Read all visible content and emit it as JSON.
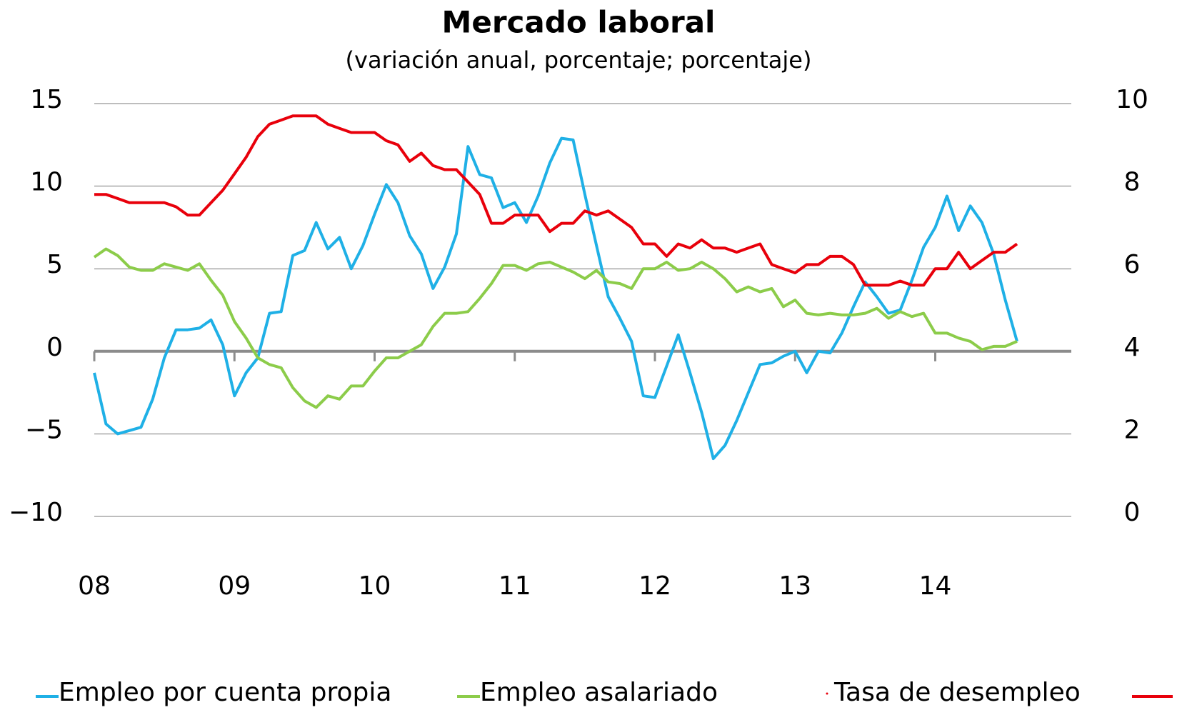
{
  "chart_data": {
    "type": "line",
    "title": "Mercado laboral",
    "subtitle": "(variación anual, porcentaje; porcentaje)",
    "x": [
      0,
      1,
      2,
      3,
      4,
      5,
      6,
      7,
      8,
      9,
      10,
      11,
      12,
      13,
      14,
      15,
      16,
      17,
      18,
      19,
      20,
      21,
      22,
      23,
      24,
      25,
      26,
      27,
      28,
      29,
      30,
      31,
      32,
      33,
      34,
      35,
      36,
      37,
      38,
      39,
      40,
      41,
      42,
      43,
      44,
      45,
      46,
      47,
      48,
      49,
      50,
      51,
      52,
      53,
      54,
      55,
      56,
      57,
      58,
      59,
      60,
      61,
      62,
      63,
      64,
      65,
      66,
      67,
      68,
      69,
      70,
      71,
      72,
      73,
      74,
      75,
      76,
      77,
      78,
      79
    ],
    "xlim": [
      0,
      79
    ],
    "xticks": [
      {
        "value": 0,
        "label": "08"
      },
      {
        "value": 12,
        "label": "09"
      },
      {
        "value": 24,
        "label": "10"
      },
      {
        "value": 36,
        "label": "11"
      },
      {
        "value": 48,
        "label": "12"
      },
      {
        "value": 60,
        "label": "13"
      },
      {
        "value": 72,
        "label": "14"
      }
    ],
    "ylim": [
      -10,
      15
    ],
    "yticks": [
      {
        "value": -10,
        "label": "−10"
      },
      {
        "value": -5,
        "label": "−5"
      },
      0,
      5,
      10,
      15
    ],
    "y2lim": [
      0,
      10
    ],
    "y2ticks": [
      0,
      2,
      4,
      6,
      8,
      10
    ],
    "grid": true,
    "legend": "bottom",
    "series": [
      {
        "name": "Empleo por cuenta propia",
        "color": "#1fb0e6",
        "values": [
          -1.3,
          -4.4,
          -5.0,
          -4.8,
          -4.6,
          -2.9,
          -0.4,
          1.3,
          1.3,
          1.4,
          1.9,
          0.4,
          -2.7,
          -1.3,
          -0.4,
          2.3,
          2.4,
          5.8,
          6.1,
          7.8,
          6.2,
          6.9,
          5.0,
          6.4,
          8.3,
          10.1,
          9.0,
          7.0,
          5.9,
          3.8,
          5.1,
          7.1,
          12.4,
          10.7,
          10.5,
          8.7,
          9.0,
          7.8,
          9.4,
          11.4,
          12.9,
          12.8,
          9.5,
          6.4,
          3.3,
          2.0,
          0.6,
          -2.7,
          -2.8,
          -0.9,
          1.0,
          -1.3,
          -3.7,
          -6.5,
          -5.7,
          -4.2,
          -2.5,
          -0.8,
          -0.7,
          -0.3,
          0.0,
          -1.3,
          0.0,
          -0.1,
          1.1,
          2.7,
          4.2,
          3.3,
          2.3,
          2.5,
          4.3,
          6.3,
          7.5,
          9.4,
          7.3,
          8.8,
          7.8,
          5.9,
          3.1,
          0.6
        ]
      },
      {
        "name": "Empleo asalariado",
        "color": "#8ccc4a",
        "values": [
          5.7,
          6.2,
          5.8,
          5.1,
          4.9,
          4.9,
          5.3,
          5.1,
          4.9,
          5.3,
          4.3,
          3.4,
          1.8,
          0.8,
          -0.4,
          -0.8,
          -1.0,
          -2.2,
          -3.0,
          -3.4,
          -2.7,
          -2.9,
          -2.1,
          -2.1,
          -1.2,
          -0.4,
          -0.4,
          0.0,
          0.4,
          1.5,
          2.3,
          2.3,
          2.4,
          3.2,
          4.1,
          5.2,
          5.2,
          4.9,
          5.3,
          5.4,
          5.1,
          4.8,
          4.4,
          4.9,
          4.2,
          4.1,
          3.8,
          5.0,
          5.0,
          5.4,
          4.9,
          5.0,
          5.4,
          5.0,
          4.4,
          3.6,
          3.9,
          3.6,
          3.8,
          2.7,
          3.1,
          2.3,
          2.2,
          2.3,
          2.2,
          2.2,
          2.3,
          2.6,
          2.0,
          2.4,
          2.1,
          2.3,
          1.1,
          1.1,
          0.8,
          0.6,
          0.1,
          0.3,
          0.3,
          0.6
        ]
      },
      {
        "name": "Tasa de desempleo",
        "color": "#e8000b",
        "axis": "y2",
        "values": [
          7.8,
          7.8,
          7.7,
          7.6,
          7.6,
          7.6,
          7.6,
          7.5,
          7.3,
          7.3,
          7.6,
          7.9,
          8.3,
          8.7,
          9.2,
          9.5,
          9.6,
          9.7,
          9.7,
          9.7,
          9.5,
          9.4,
          9.3,
          9.3,
          9.3,
          9.1,
          9.0,
          8.6,
          8.8,
          8.5,
          8.4,
          8.4,
          8.1,
          7.8,
          7.1,
          7.1,
          7.3,
          7.3,
          7.3,
          6.9,
          7.1,
          7.1,
          7.4,
          7.3,
          7.4,
          7.2,
          7.0,
          6.6,
          6.6,
          6.3,
          6.6,
          6.5,
          6.7,
          6.5,
          6.5,
          6.4,
          6.5,
          6.6,
          6.1,
          6.0,
          5.9,
          6.1,
          6.1,
          6.3,
          6.3,
          6.1,
          5.6,
          5.6,
          5.6,
          5.7,
          5.6,
          5.6,
          6.0,
          6.0,
          6.4,
          6.0,
          6.2,
          6.4,
          6.4,
          6.6
        ]
      }
    ]
  }
}
